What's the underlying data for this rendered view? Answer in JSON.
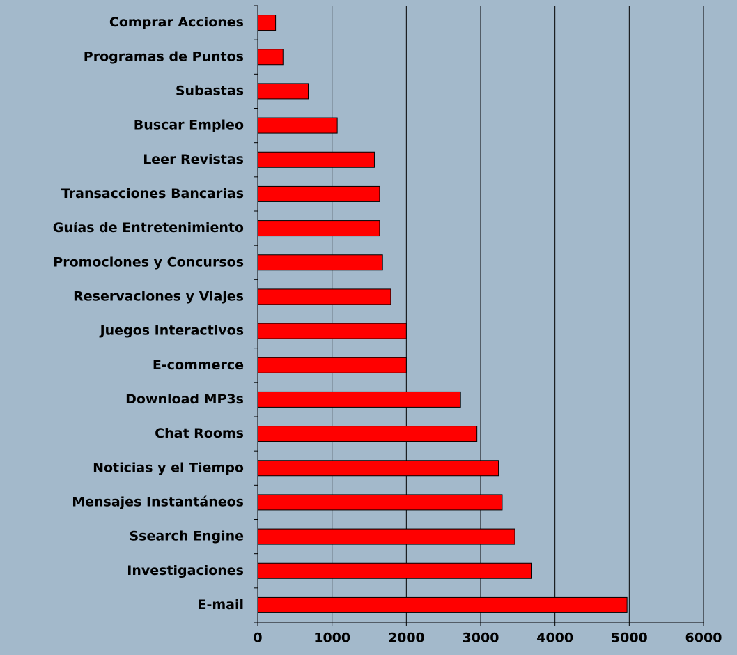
{
  "chart_data": {
    "type": "bar",
    "orientation": "horizontal",
    "categories": [
      "Comprar Acciones",
      "Programas de Puntos",
      "Subastas",
      "Buscar Empleo",
      "Leer Revistas",
      "Transacciones Bancarias",
      "Guías de Entretenimiento",
      "Promociones y Concursos",
      "Reservaciones y Viajes",
      "Juegos Interactivos",
      "E-commerce",
      "Download MP3s",
      "Chat Rooms",
      "Noticias y el Tiempo",
      "Mensajes Instantáneos",
      "Ssearch Engine",
      "Investigaciones",
      "E-mail"
    ],
    "values": [
      240,
      340,
      680,
      1070,
      1570,
      1640,
      1640,
      1680,
      1790,
      2000,
      2000,
      2730,
      2950,
      3240,
      3290,
      3460,
      3680,
      4970
    ],
    "color": "#ff0000",
    "xlim": [
      0,
      6000
    ],
    "xticks": [
      0,
      1000,
      2000,
      3000,
      4000,
      5000,
      6000
    ],
    "grid": true
  }
}
